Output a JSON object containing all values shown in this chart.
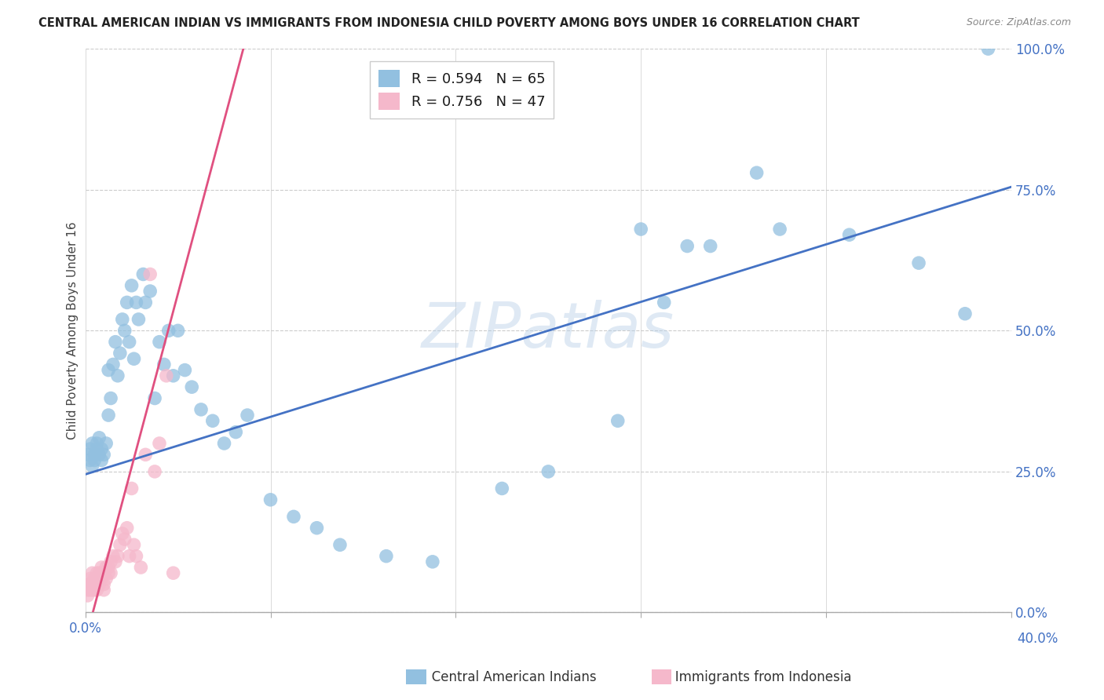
{
  "title": "CENTRAL AMERICAN INDIAN VS IMMIGRANTS FROM INDONESIA CHILD POVERTY AMONG BOYS UNDER 16 CORRELATION CHART",
  "source": "Source: ZipAtlas.com",
  "ylabel": "Child Poverty Among Boys Under 16",
  "x_min": 0.0,
  "x_max": 0.4,
  "y_min": 0.0,
  "y_max": 1.0,
  "blue_R": 0.594,
  "blue_N": 65,
  "pink_R": 0.756,
  "pink_N": 47,
  "blue_color": "#92c0e0",
  "pink_color": "#f5b8cb",
  "blue_line_color": "#4472c4",
  "pink_line_color": "#e05080",
  "watermark": "ZIPatlas",
  "ytick_values": [
    0.0,
    0.25,
    0.5,
    0.75,
    1.0
  ],
  "ytick_labels": [
    "0.0%",
    "25.0%",
    "50.0%",
    "75.0%",
    "100.0%"
  ],
  "xtick_values": [
    0.0,
    0.08,
    0.16,
    0.24,
    0.32,
    0.4
  ],
  "background_color": "#ffffff",
  "grid_color": "#cccccc",
  "blue_x": [
    0.001,
    0.002,
    0.002,
    0.003,
    0.003,
    0.004,
    0.004,
    0.005,
    0.005,
    0.006,
    0.006,
    0.007,
    0.007,
    0.008,
    0.009,
    0.01,
    0.01,
    0.011,
    0.012,
    0.013,
    0.014,
    0.015,
    0.016,
    0.017,
    0.018,
    0.019,
    0.02,
    0.021,
    0.022,
    0.023,
    0.025,
    0.026,
    0.028,
    0.03,
    0.032,
    0.034,
    0.036,
    0.038,
    0.04,
    0.043,
    0.046,
    0.05,
    0.055,
    0.06,
    0.065,
    0.07,
    0.08,
    0.09,
    0.1,
    0.11,
    0.13,
    0.15,
    0.18,
    0.2,
    0.23,
    0.25,
    0.27,
    0.3,
    0.33,
    0.36,
    0.38,
    0.39,
    0.24,
    0.26,
    0.29
  ],
  "blue_y": [
    0.28,
    0.29,
    0.27,
    0.3,
    0.26,
    0.28,
    0.27,
    0.3,
    0.29,
    0.31,
    0.28,
    0.27,
    0.29,
    0.28,
    0.3,
    0.35,
    0.43,
    0.38,
    0.44,
    0.48,
    0.42,
    0.46,
    0.52,
    0.5,
    0.55,
    0.48,
    0.58,
    0.45,
    0.55,
    0.52,
    0.6,
    0.55,
    0.57,
    0.38,
    0.48,
    0.44,
    0.5,
    0.42,
    0.5,
    0.43,
    0.4,
    0.36,
    0.34,
    0.3,
    0.32,
    0.35,
    0.2,
    0.17,
    0.15,
    0.12,
    0.1,
    0.09,
    0.22,
    0.25,
    0.34,
    0.55,
    0.65,
    0.68,
    0.67,
    0.62,
    0.53,
    1.0,
    0.68,
    0.65,
    0.78
  ],
  "pink_x": [
    0.001,
    0.001,
    0.001,
    0.002,
    0.002,
    0.002,
    0.003,
    0.003,
    0.003,
    0.004,
    0.004,
    0.004,
    0.005,
    0.005,
    0.005,
    0.006,
    0.006,
    0.006,
    0.007,
    0.007,
    0.008,
    0.008,
    0.008,
    0.009,
    0.009,
    0.01,
    0.01,
    0.011,
    0.011,
    0.012,
    0.013,
    0.014,
    0.015,
    0.016,
    0.017,
    0.018,
    0.019,
    0.02,
    0.021,
    0.022,
    0.024,
    0.026,
    0.028,
    0.03,
    0.032,
    0.035,
    0.038
  ],
  "pink_y": [
    0.05,
    0.04,
    0.03,
    0.06,
    0.05,
    0.04,
    0.07,
    0.05,
    0.04,
    0.06,
    0.05,
    0.04,
    0.07,
    0.05,
    0.04,
    0.07,
    0.06,
    0.05,
    0.08,
    0.06,
    0.07,
    0.05,
    0.04,
    0.08,
    0.06,
    0.08,
    0.07,
    0.09,
    0.07,
    0.1,
    0.09,
    0.1,
    0.12,
    0.14,
    0.13,
    0.15,
    0.1,
    0.22,
    0.12,
    0.1,
    0.08,
    0.28,
    0.6,
    0.25,
    0.3,
    0.42,
    0.07
  ]
}
